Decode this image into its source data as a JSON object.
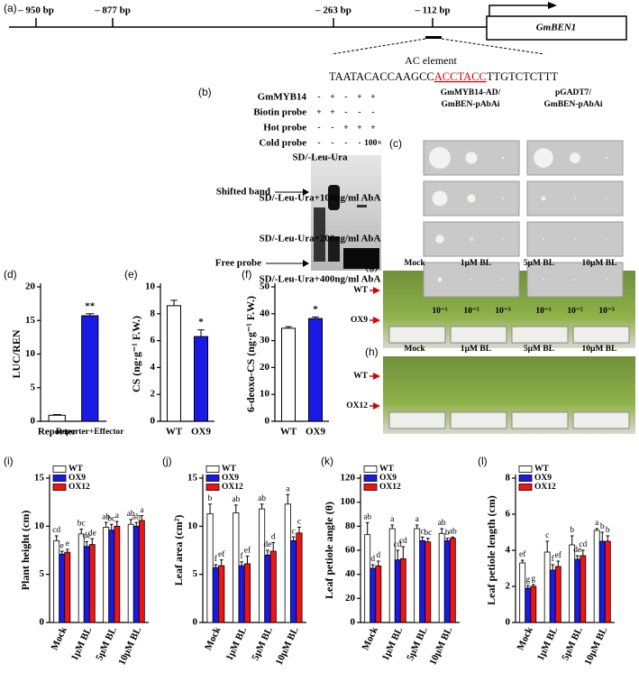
{
  "promoter": {
    "panel": "(a)",
    "positions": [
      "– 950 bp",
      "– 877 bp",
      "– 263 bp",
      "– 112 bp"
    ],
    "gene": "GmBEN1",
    "element": "AC element",
    "sequence": [
      "TAATACACCAAGCC",
      "ACCTACC",
      "TTGTCTCTTT"
    ]
  },
  "emsa": {
    "panel": "(b)",
    "rows": [
      {
        "label": "GmMYB14",
        "lanes": [
          "-",
          "+",
          "-",
          "+",
          "+"
        ]
      },
      {
        "label": "Biotin probe",
        "lanes": [
          "+",
          "+",
          "-",
          "-",
          "-"
        ]
      },
      {
        "label": "Hot probe",
        "lanes": [
          "-",
          "-",
          "+",
          "+",
          "+"
        ]
      },
      {
        "label": "Cold probe",
        "lanes": [
          "-",
          "-",
          "-",
          "-",
          "100×"
        ]
      }
    ],
    "bands": [
      "Shifted band",
      "Free probe"
    ]
  },
  "y1h": {
    "panel": "(c)",
    "columns": [
      [
        "GmMYB14-AD/",
        "GmBEN-pAbAi"
      ],
      [
        "pGADT7/",
        "GmBEN-pAbAi"
      ]
    ],
    "rows": [
      "SD/-Leu-Ura",
      "SD/-Leu-Ura+100ng/ml AbA",
      "SD/-Leu-Ura+200ng/ml AbA",
      "SD/-Leu-Ura+400ng/ml AbA"
    ],
    "dilutions": [
      "10⁻¹",
      "10⁻²",
      "10⁻³"
    ]
  },
  "photos": [
    {
      "panel": "(g)",
      "treatments": [
        "Mock",
        "1μM BL",
        "5μM BL",
        "10μM BL"
      ],
      "lines": [
        "WT",
        "OX9"
      ]
    },
    {
      "panel": "(h)",
      "treatments": [
        "Mock",
        "1μM BL",
        "5μM BL",
        "10μM BL"
      ],
      "lines": [
        "WT",
        "OX12"
      ]
    }
  ],
  "chart_data": [
    {
      "type": "bar",
      "panel": "(d)",
      "ylabel": "LUC/REN",
      "categories": [
        "Reporter",
        "Reporter+Effector"
      ],
      "values": [
        0.9,
        15.7
      ],
      "errors": [
        0.1,
        0.3
      ],
      "colors": [
        "#ffffff",
        "#1a1ae6"
      ],
      "significance": [
        null,
        "**"
      ],
      "ylim": [
        0,
        20
      ],
      "yticks": [
        0,
        5,
        10,
        15,
        20
      ]
    },
    {
      "type": "bar",
      "panel": "(e)",
      "ylabel": "CS (ng·g⁻¹ F.W.)",
      "categories": [
        "WT",
        "OX9"
      ],
      "values": [
        8.6,
        6.3
      ],
      "errors": [
        0.4,
        0.5
      ],
      "colors": [
        "#ffffff",
        "#1a1ae6"
      ],
      "significance": [
        null,
        "*"
      ],
      "ylim": [
        0,
        10
      ],
      "yticks": [
        0,
        2,
        4,
        6,
        8,
        10
      ]
    },
    {
      "type": "bar",
      "panel": "(f)",
      "ylabel": "6-deoxo-CS (ng·g⁻¹ F.W.)",
      "categories": [
        "WT",
        "OX9"
      ],
      "values": [
        34.6,
        38.2
      ],
      "errors": [
        0.6,
        0.6
      ],
      "colors": [
        "#ffffff",
        "#1a1ae6"
      ],
      "significance": [
        null,
        "*"
      ],
      "ylim": [
        0,
        50
      ],
      "yticks": [
        0,
        10,
        20,
        30,
        40,
        50
      ]
    },
    {
      "type": "bar",
      "panel": "(i)",
      "ylabel": "Plant height (cm)",
      "categories": [
        "Mock",
        "1μM BL",
        "5μM BL",
        "10μM BL"
      ],
      "legend": "upper left",
      "ylim": [
        0,
        15
      ],
      "yticks": [
        0,
        5,
        10,
        15
      ],
      "series": [
        {
          "name": "WT",
          "color": "#ffffff",
          "values": [
            8.5,
            9.2,
            9.9,
            10.2
          ],
          "errors": [
            0.5,
            0.5,
            0.5,
            0.5
          ],
          "letters": [
            "cd",
            "bc",
            "ab",
            "ab"
          ]
        },
        {
          "name": "OX9",
          "color": "#1a1ae6",
          "values": [
            7.1,
            7.9,
            9.6,
            10.0
          ],
          "errors": [
            0.3,
            0.5,
            0.6,
            0.4
          ],
          "letters": [
            "e",
            "de",
            "bc",
            "ab"
          ]
        },
        {
          "name": "OX12",
          "color": "#f01414",
          "values": [
            7.3,
            8.1,
            10.0,
            10.6
          ],
          "errors": [
            0.3,
            0.6,
            0.5,
            0.5
          ],
          "letters": [
            "e",
            "de",
            "a",
            "a"
          ]
        }
      ]
    },
    {
      "type": "bar",
      "panel": "(j)",
      "ylabel": "Leaf area (cm²)",
      "categories": [
        "Mock",
        "1μM BL",
        "5μM BL",
        "10μM BL"
      ],
      "legend": "upper left",
      "ylim": [
        0,
        15
      ],
      "yticks": [
        0,
        5,
        10,
        15
      ],
      "series": [
        {
          "name": "WT",
          "color": "#ffffff",
          "values": [
            11.3,
            11.4,
            11.8,
            12.3
          ],
          "errors": [
            1.0,
            0.8,
            0.5,
            1.0
          ],
          "letters": [
            "b",
            "ab",
            "ab",
            "a"
          ]
        },
        {
          "name": "OX9",
          "color": "#1a1ae6",
          "values": [
            5.7,
            5.9,
            7.0,
            8.5
          ],
          "errors": [
            0.3,
            0.4,
            0.5,
            0.4
          ],
          "letters": [
            "f",
            "f",
            "de",
            "c"
          ]
        },
        {
          "name": "OX12",
          "color": "#f01414",
          "values": [
            5.9,
            6.1,
            7.4,
            9.3
          ],
          "errors": [
            0.6,
            0.8,
            0.9,
            0.6
          ],
          "letters": [
            "ef",
            "ef",
            "d",
            "c"
          ]
        }
      ]
    },
    {
      "type": "bar",
      "panel": "(k)",
      "ylabel": "Leaf petiole angle (θ)",
      "categories": [
        "Mock",
        "1μM BL",
        "5μM BL",
        "10μM BL"
      ],
      "legend": "upper left",
      "ylim": [
        0,
        120
      ],
      "yticks": [
        0,
        20,
        40,
        60,
        80,
        100,
        120
      ],
      "series": [
        {
          "name": "WT",
          "color": "#ffffff",
          "values": [
            73,
            78,
            78,
            74
          ],
          "errors": [
            10,
            3,
            3,
            4
          ],
          "letters": [
            "ab",
            "a",
            "a",
            "ab"
          ]
        },
        {
          "name": "OX9",
          "color": "#1a1ae6",
          "values": [
            45,
            52,
            68,
            68
          ],
          "errors": [
            3,
            8,
            3,
            2
          ],
          "letters": [
            "d",
            "cd",
            "c",
            "b"
          ]
        },
        {
          "name": "OX12",
          "color": "#f01414",
          "values": [
            47,
            53,
            67,
            70
          ],
          "errors": [
            4,
            10,
            3,
            1
          ],
          "letters": [
            "d",
            "cd",
            "bc",
            "ab"
          ]
        }
      ]
    },
    {
      "type": "bar",
      "panel": "(l)",
      "ylabel": "Leaf petiole length (cm)",
      "categories": [
        "Mock",
        "1μM BL",
        "5μM BL",
        "10μM BL"
      ],
      "legend": "upper left",
      "ylim": [
        0,
        8
      ],
      "yticks": [
        0,
        2,
        4,
        6,
        8
      ],
      "series": [
        {
          "name": "WT",
          "color": "#ffffff",
          "values": [
            3.3,
            3.9,
            4.3,
            5.1
          ],
          "errors": [
            0.15,
            0.6,
            0.5,
            0.1
          ],
          "letters": [
            "ef",
            "c",
            "b",
            "a"
          ]
        },
        {
          "name": "OX9",
          "color": "#1a1ae6",
          "values": [
            1.9,
            2.9,
            3.5,
            4.5
          ],
          "errors": [
            0.15,
            0.3,
            0.2,
            0.5
          ],
          "letters": [
            "g",
            "f",
            "de",
            "b"
          ]
        },
        {
          "name": "OX12",
          "color": "#f01414",
          "values": [
            2.0,
            3.1,
            3.7,
            4.5
          ],
          "errors": [
            0.1,
            0.3,
            0.3,
            0.3
          ],
          "letters": [
            "g",
            "ef",
            "cd",
            "b"
          ]
        }
      ]
    }
  ]
}
